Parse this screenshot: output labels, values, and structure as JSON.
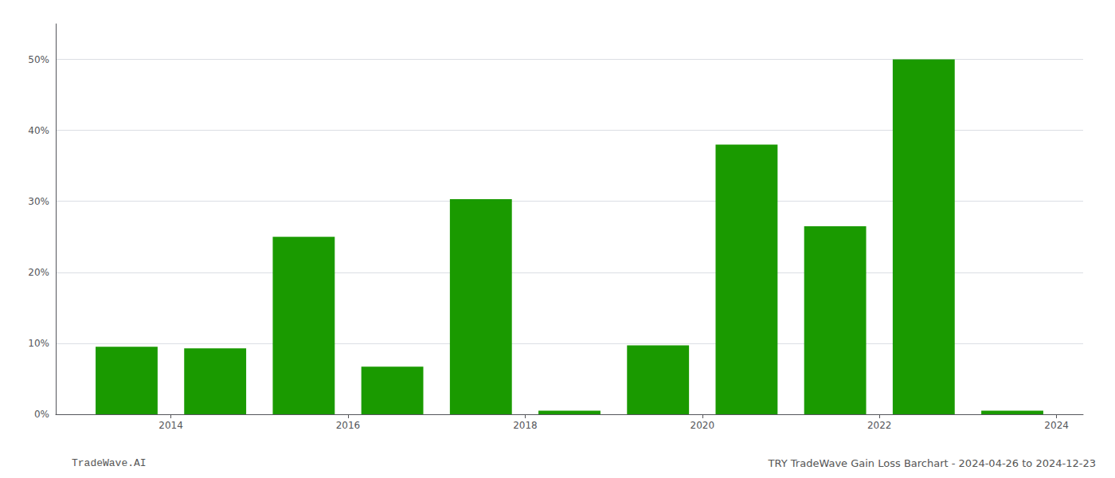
{
  "chart_data": {
    "type": "bar",
    "x": [
      2013,
      2014,
      2015,
      2016,
      2017,
      2018,
      2019,
      2020,
      2021,
      2022,
      2023
    ],
    "values": [
      9.5,
      9.3,
      25.0,
      6.7,
      30.3,
      0.5,
      9.7,
      38.0,
      26.5,
      50.0,
      0.5
    ],
    "color": "#1a9a00",
    "xlim": [
      2012.2,
      2023.8
    ],
    "xticks": [
      {
        "value": 2013.5,
        "label": "2014"
      },
      {
        "value": 2015.5,
        "label": "2016"
      },
      {
        "value": 2017.5,
        "label": "2018"
      },
      {
        "value": 2019.5,
        "label": "2020"
      },
      {
        "value": 2021.5,
        "label": "2022"
      },
      {
        "value": 2023.5,
        "label": "2024"
      }
    ],
    "ylim": [
      0,
      55
    ],
    "yticks": [
      {
        "value": 0,
        "label": "0%"
      },
      {
        "value": 10,
        "label": "10%"
      },
      {
        "value": 20,
        "label": "20%"
      },
      {
        "value": 30,
        "label": "30%"
      },
      {
        "value": 40,
        "label": "40%"
      },
      {
        "value": 50,
        "label": "50%"
      }
    ],
    "grid": true,
    "annotations": [
      "TradeWave.AI",
      "TRY TradeWave Gain Loss Barchart - 2024-04-26 to 2024-12-23"
    ]
  }
}
